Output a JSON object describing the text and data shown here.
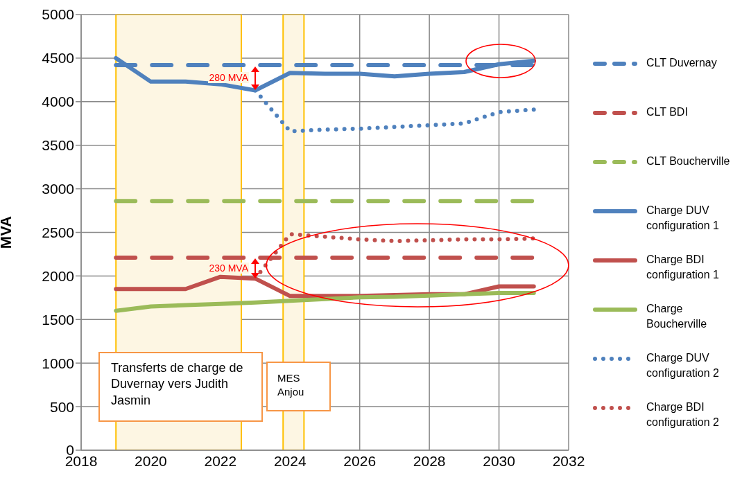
{
  "chart_data": {
    "type": "line",
    "ylabel": "MVA",
    "x": [
      2019,
      2020,
      2021,
      2022,
      2023,
      2024,
      2025,
      2026,
      2027,
      2028,
      2029,
      2030,
      2031
    ],
    "xlim": [
      2018,
      2032
    ],
    "xticks": [
      2018,
      2020,
      2022,
      2024,
      2026,
      2028,
      2030,
      2032
    ],
    "ylim": [
      0,
      5000
    ],
    "yticks": [
      0,
      500,
      1000,
      1500,
      2000,
      2500,
      3000,
      3500,
      4000,
      4500,
      5000
    ],
    "grid": true,
    "legend": "right",
    "series": [
      {
        "name": "CLT Duvernay",
        "color": "#4f81bd",
        "line_style": "dashed",
        "values": [
          4420,
          4420,
          4420,
          4420,
          4420,
          4420,
          4420,
          4420,
          4420,
          4420,
          4420,
          4420,
          4420
        ]
      },
      {
        "name": "CLT BDI",
        "color": "#c0504d",
        "line_style": "dashed",
        "values": [
          2210,
          2210,
          2210,
          2210,
          2210,
          2210,
          2210,
          2210,
          2210,
          2210,
          2210,
          2210,
          2210
        ]
      },
      {
        "name": "CLT Boucherville",
        "color": "#9bbb59",
        "line_style": "dashed",
        "values": [
          2860,
          2860,
          2860,
          2860,
          2860,
          2860,
          2860,
          2860,
          2860,
          2860,
          2860,
          2860,
          2860
        ]
      },
      {
        "name": "Charge DUV configuration 1",
        "color": "#4f81bd",
        "line_style": "solid",
        "values": [
          4500,
          4230,
          4230,
          4200,
          4130,
          4330,
          4320,
          4320,
          4290,
          4320,
          4340,
          4430,
          4470
        ]
      },
      {
        "name": "Charge BDI configuration 1",
        "color": "#c0504d",
        "line_style": "solid",
        "values": [
          1850,
          1850,
          1850,
          1990,
          1970,
          1770,
          1770,
          1770,
          1780,
          1790,
          1790,
          1880,
          1880
        ]
      },
      {
        "name": "Charge Boucherville",
        "color": "#9bbb59",
        "line_style": "solid",
        "values": [
          1600,
          1650,
          1665,
          1680,
          1695,
          1715,
          1735,
          1755,
          1760,
          1775,
          1790,
          1805,
          1805
        ]
      },
      {
        "name": "Charge DUV configuration 2",
        "color": "#4f81bd",
        "line_style": "dotted",
        "values": [
          null,
          null,
          null,
          null,
          4130,
          3660,
          3680,
          3690,
          3710,
          3730,
          3750,
          3880,
          3910
        ]
      },
      {
        "name": "Charge BDI configuration 2",
        "color": "#c0504d",
        "line_style": "dotted",
        "values": [
          null,
          null,
          null,
          null,
          1970,
          2480,
          2450,
          2420,
          2400,
          2410,
          2420,
          2420,
          2430
        ]
      }
    ],
    "bands": [
      {
        "axis": "x",
        "from": 2019,
        "to": 2022.6,
        "color": "#ffc000"
      },
      {
        "axis": "x",
        "from": 2023.8,
        "to": 2024.4,
        "color": "#ffc000"
      }
    ],
    "annotations": [
      "280 MVA",
      "230 MVA",
      "Transferts de charge de Duvernay vers Judith Jasmin",
      "MES Anjou"
    ]
  }
}
